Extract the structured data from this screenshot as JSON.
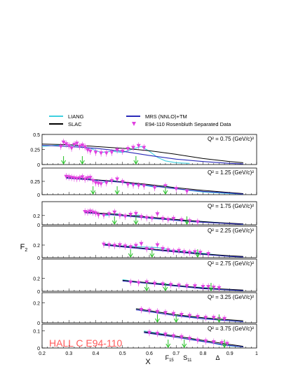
{
  "chart_data": {
    "type": "scatter",
    "xlabel": "X",
    "ylabel": "F",
    "ylabel_sub": "2",
    "x_ticks": [
      "0.2",
      "0.3",
      "0.4",
      "0.5",
      "0.6",
      "0.7",
      "0.8",
      "0.9",
      "1"
    ],
    "xlim": [
      0.2,
      1.0
    ],
    "annotation": "HALL C  E94-110",
    "resonance_labels": [
      {
        "text": "F",
        "sub": "15",
        "x": 0.675
      },
      {
        "text": "S",
        "sub": "11",
        "x": 0.742
      },
      {
        "text": "Δ",
        "sub": "",
        "x": 0.855
      }
    ],
    "legend": [
      {
        "label": "LIANG",
        "kind": "line",
        "color": "#3fd0e0"
      },
      {
        "label": "SLAC",
        "kind": "line",
        "color": "#000000"
      },
      {
        "label": "MRS (NNLO)+TM",
        "kind": "line",
        "color": "#2a2ab8"
      },
      {
        "label": "E94-110 Rosenbluth Separated Data",
        "kind": "marker",
        "color": "#e040e0"
      }
    ],
    "colors": {
      "liang": "#3fd0e0",
      "slac": "#000000",
      "mrs": "#2a2ab8",
      "data": "#e040e0",
      "arrow": "#22c022",
      "annotation": "#ff5a5a"
    },
    "panels": [
      {
        "q2": "Q² = 0.75 (GeV/c)²",
        "q2_value": "0.75",
        "ylim": [
          0,
          0.5
        ],
        "yticks": [
          "0",
          "0.25",
          "0.5"
        ],
        "arrows": [
          0.28,
          0.35,
          0.55
        ],
        "data_x": [
          0.27,
          0.28,
          0.29,
          0.3,
          0.31,
          0.32,
          0.33,
          0.34,
          0.35,
          0.36,
          0.37,
          0.38,
          0.4,
          0.42,
          0.44,
          0.46,
          0.48,
          0.5,
          0.52,
          0.54,
          0.56,
          0.58
        ],
        "data_y": [
          0.3,
          0.37,
          0.34,
          0.31,
          0.27,
          0.33,
          0.35,
          0.3,
          0.32,
          0.29,
          0.24,
          0.22,
          0.2,
          0.19,
          0.19,
          0.2,
          0.24,
          0.22,
          0.26,
          0.28,
          0.31,
          0.28
        ],
        "liang_x": [
          0.2,
          0.28,
          0.33,
          0.38,
          0.42,
          0.46,
          0.5,
          0.54,
          0.57,
          0.6,
          0.63,
          0.66,
          0.7,
          0.75
        ],
        "liang_y": [
          0.3,
          0.33,
          0.31,
          0.27,
          0.2,
          0.22,
          0.2,
          0.26,
          0.3,
          0.22,
          0.12,
          0.06,
          0.03,
          0.02
        ],
        "slac_x": [
          0.2,
          0.3,
          0.4,
          0.5,
          0.6,
          0.7,
          0.8,
          0.9,
          0.95
        ],
        "slac_y": [
          0.34,
          0.33,
          0.3,
          0.27,
          0.23,
          0.17,
          0.1,
          0.05,
          0.03
        ],
        "mrs_x": [
          0.2,
          0.3,
          0.4,
          0.5,
          0.6,
          0.7,
          0.8,
          0.9,
          0.95
        ],
        "mrs_y": [
          0.32,
          0.3,
          0.27,
          0.22,
          0.15,
          0.09,
          0.05,
          0.02,
          0.01
        ]
      },
      {
        "q2": "Q² = 1.25 (GeV/c)²",
        "q2_value": "1.25",
        "ylim": [
          0,
          0.5
        ],
        "yticks": [
          "0",
          "0.25"
        ],
        "arrows": [
          0.39,
          0.48,
          0.66
        ],
        "data_x": [
          0.29,
          0.3,
          0.31,
          0.32,
          0.33,
          0.34,
          0.35,
          0.36,
          0.37,
          0.38,
          0.39,
          0.4,
          0.41,
          0.42,
          0.44,
          0.46,
          0.48,
          0.5,
          0.52,
          0.54,
          0.56,
          0.58,
          0.62,
          0.66,
          0.7,
          0.74
        ],
        "data_y": [
          0.34,
          0.33,
          0.32,
          0.31,
          0.3,
          0.31,
          0.33,
          0.29,
          0.31,
          0.32,
          0.26,
          0.22,
          0.21,
          0.2,
          0.22,
          0.26,
          0.29,
          0.24,
          0.19,
          0.18,
          0.17,
          0.16,
          0.13,
          0.16,
          0.11,
          0.06
        ],
        "liang_x": [
          0.29,
          0.34,
          0.38,
          0.42,
          0.46,
          0.5,
          0.54,
          0.58,
          0.62,
          0.66,
          0.7,
          0.75,
          0.8,
          0.9,
          0.95
        ],
        "liang_y": [
          0.33,
          0.31,
          0.3,
          0.22,
          0.27,
          0.23,
          0.19,
          0.18,
          0.14,
          0.17,
          0.11,
          0.08,
          0.05,
          0.02,
          0.01
        ],
        "slac_x": [
          0.29,
          0.4,
          0.5,
          0.6,
          0.7,
          0.8,
          0.9,
          0.95
        ],
        "slac_y": [
          0.32,
          0.28,
          0.24,
          0.19,
          0.13,
          0.08,
          0.04,
          0.02
        ],
        "mrs_x": [
          0.29,
          0.4,
          0.5,
          0.6,
          0.7,
          0.8,
          0.9,
          0.95
        ],
        "mrs_y": [
          0.31,
          0.27,
          0.23,
          0.17,
          0.11,
          0.06,
          0.03,
          0.01
        ]
      },
      {
        "q2": "Q² = 1.75 (GeV/c)²",
        "q2_value": "1.75",
        "ylim": [
          0,
          0.5
        ],
        "yticks": [
          "0",
          "0.2"
        ],
        "arrows": [
          0.47,
          0.55,
          0.74
        ],
        "data_x": [
          0.36,
          0.37,
          0.38,
          0.39,
          0.4,
          0.41,
          0.43,
          0.45,
          0.47,
          0.49,
          0.51,
          0.53,
          0.55,
          0.57,
          0.59,
          0.61,
          0.63,
          0.65,
          0.67,
          0.69,
          0.72,
          0.75,
          0.78
        ],
        "data_y": [
          0.28,
          0.27,
          0.29,
          0.27,
          0.25,
          0.21,
          0.2,
          0.23,
          0.27,
          0.2,
          0.18,
          0.22,
          0.24,
          0.17,
          0.15,
          0.14,
          0.23,
          0.13,
          0.11,
          0.13,
          0.1,
          0.08,
          0.06
        ],
        "liang_x": [
          0.36,
          0.4,
          0.44,
          0.48,
          0.52,
          0.56,
          0.6,
          0.65,
          0.7,
          0.75,
          0.8,
          0.85,
          0.9,
          0.95
        ],
        "liang_y": [
          0.28,
          0.26,
          0.2,
          0.24,
          0.19,
          0.21,
          0.14,
          0.12,
          0.1,
          0.09,
          0.07,
          0.05,
          0.03,
          0.01
        ],
        "slac_x": [
          0.36,
          0.45,
          0.55,
          0.65,
          0.75,
          0.85,
          0.95
        ],
        "slac_y": [
          0.27,
          0.24,
          0.19,
          0.14,
          0.09,
          0.05,
          0.02
        ],
        "mrs_x": [
          0.36,
          0.45,
          0.55,
          0.65,
          0.75,
          0.85,
          0.95
        ],
        "mrs_y": [
          0.26,
          0.22,
          0.17,
          0.12,
          0.07,
          0.04,
          0.01
        ]
      },
      {
        "q2": "Q² = 2.25 (GeV/c)²",
        "q2_value": "2.25",
        "ylim": [
          0,
          0.5
        ],
        "yticks": [
          "0",
          "0.2"
        ],
        "arrows": [
          0.53,
          0.61,
          0.78
        ],
        "data_x": [
          0.43,
          0.45,
          0.47,
          0.49,
          0.51,
          0.53,
          0.55,
          0.57,
          0.59,
          0.61,
          0.63,
          0.65,
          0.67,
          0.69,
          0.71,
          0.73,
          0.75,
          0.77,
          0.79,
          0.82
        ],
        "data_y": [
          0.21,
          0.2,
          0.19,
          0.2,
          0.18,
          0.17,
          0.19,
          0.22,
          0.14,
          0.13,
          0.2,
          0.14,
          0.12,
          0.1,
          0.11,
          0.09,
          0.08,
          0.09,
          0.08,
          0.06
        ],
        "liang_x": [
          0.43,
          0.48,
          0.53,
          0.58,
          0.63,
          0.68,
          0.73,
          0.78,
          0.84,
          0.9,
          0.95
        ],
        "liang_y": [
          0.22,
          0.19,
          0.18,
          0.17,
          0.16,
          0.12,
          0.1,
          0.08,
          0.05,
          0.02,
          0.01
        ],
        "slac_x": [
          0.43,
          0.5,
          0.6,
          0.7,
          0.8,
          0.9,
          0.95
        ],
        "slac_y": [
          0.21,
          0.18,
          0.14,
          0.1,
          0.06,
          0.03,
          0.02
        ],
        "mrs_x": [
          0.43,
          0.5,
          0.6,
          0.7,
          0.8,
          0.9,
          0.95
        ],
        "mrs_y": [
          0.2,
          0.17,
          0.13,
          0.09,
          0.05,
          0.02,
          0.01
        ]
      },
      {
        "q2": "Q² = 2.75 (GeV/c)²",
        "q2_value": "2.75",
        "ylim": [
          0,
          0.5
        ],
        "yticks": [
          "0",
          "0.2"
        ],
        "arrows": [
          0.59,
          0.66,
          0.83
        ],
        "data_x": [
          0.53,
          0.56,
          0.59,
          0.62,
          0.65,
          0.68,
          0.71,
          0.74,
          0.77,
          0.8,
          0.82,
          0.84,
          0.86
        ],
        "data_y": [
          0.14,
          0.13,
          0.14,
          0.12,
          0.11,
          0.1,
          0.09,
          0.08,
          0.08,
          0.07,
          0.07,
          0.06,
          0.05
        ],
        "liang_x": [
          0.5,
          0.55,
          0.6,
          0.65,
          0.7,
          0.75,
          0.8,
          0.85,
          0.9,
          0.95
        ],
        "liang_y": [
          0.18,
          0.15,
          0.13,
          0.12,
          0.09,
          0.07,
          0.06,
          0.04,
          0.02,
          0.01
        ],
        "slac_x": [
          0.5,
          0.6,
          0.7,
          0.8,
          0.9,
          0.95
        ],
        "slac_y": [
          0.17,
          0.13,
          0.09,
          0.05,
          0.03,
          0.02
        ],
        "mrs_x": [
          0.5,
          0.6,
          0.7,
          0.8,
          0.9,
          0.95
        ],
        "mrs_y": [
          0.16,
          0.12,
          0.08,
          0.04,
          0.02,
          0.01
        ]
      },
      {
        "q2": "Q² = 3.25 (GeV/c)²",
        "q2_value": "3.25",
        "ylim": [
          0,
          0.3
        ],
        "yticks": [
          "0",
          "0.2"
        ],
        "arrows": [
          0.63,
          0.7,
          0.86
        ],
        "data_x": [
          0.57,
          0.6,
          0.63,
          0.66,
          0.69,
          0.72,
          0.75,
          0.78,
          0.81,
          0.84,
          0.86,
          0.88
        ],
        "data_y": [
          0.13,
          0.12,
          0.11,
          0.1,
          0.09,
          0.08,
          0.07,
          0.06,
          0.05,
          0.05,
          0.04,
          0.04
        ],
        "liang_x": [
          0.55,
          0.6,
          0.65,
          0.7,
          0.75,
          0.8,
          0.85,
          0.9,
          0.95
        ],
        "liang_y": [
          0.14,
          0.12,
          0.1,
          0.08,
          0.06,
          0.05,
          0.03,
          0.02,
          0.01
        ],
        "slac_x": [
          0.55,
          0.6,
          0.7,
          0.8,
          0.9,
          0.95
        ],
        "slac_y": [
          0.14,
          0.12,
          0.08,
          0.05,
          0.03,
          0.02
        ],
        "mrs_x": [
          0.55,
          0.6,
          0.7,
          0.8,
          0.9,
          0.95
        ],
        "mrs_y": [
          0.13,
          0.11,
          0.07,
          0.04,
          0.02,
          0.01
        ]
      },
      {
        "q2": "Q² = 3.75 (GeV/c)²",
        "q2_value": "3.75",
        "ylim": [
          0,
          0.14
        ],
        "yticks": [
          "0",
          "0.1"
        ],
        "arrows": [
          0.67,
          0.73,
          0.88
        ],
        "data_x": [
          0.6,
          0.63,
          0.66,
          0.69,
          0.72,
          0.75,
          0.78,
          0.81,
          0.84,
          0.87,
          0.89
        ],
        "data_y": [
          0.09,
          0.085,
          0.08,
          0.07,
          0.065,
          0.055,
          0.045,
          0.04,
          0.035,
          0.03,
          0.025
        ],
        "liang_x": [
          0.58,
          0.62,
          0.66,
          0.7,
          0.74,
          0.78,
          0.82,
          0.86,
          0.9,
          0.95
        ],
        "liang_y": [
          0.1,
          0.09,
          0.08,
          0.07,
          0.06,
          0.045,
          0.035,
          0.02,
          0.012,
          0.006
        ],
        "slac_x": [
          0.58,
          0.65,
          0.72,
          0.8,
          0.88,
          0.95
        ],
        "slac_y": [
          0.095,
          0.08,
          0.065,
          0.045,
          0.025,
          0.01
        ],
        "mrs_x": [
          0.58,
          0.65,
          0.72,
          0.8,
          0.88,
          0.95
        ],
        "mrs_y": [
          0.09,
          0.075,
          0.058,
          0.038,
          0.018,
          0.006
        ]
      }
    ]
  }
}
